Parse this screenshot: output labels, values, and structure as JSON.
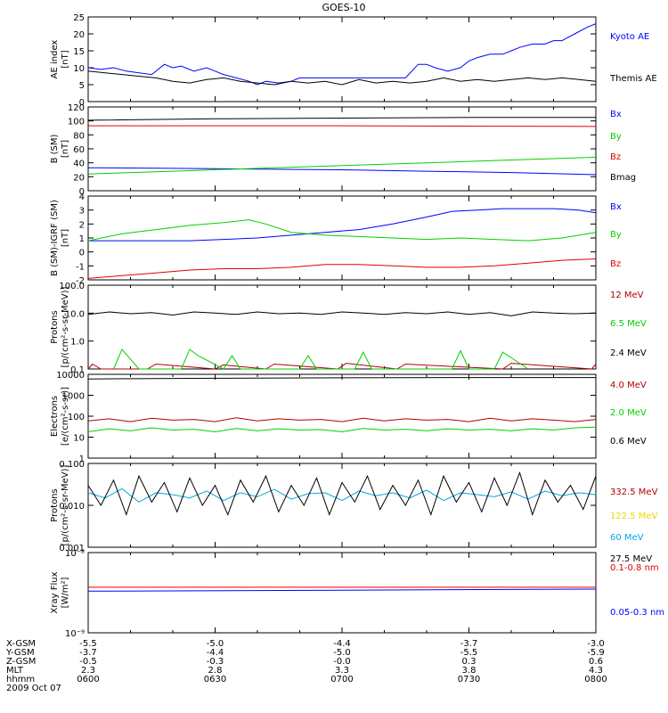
{
  "title": "GOES-10",
  "colors": {
    "black": "#000000",
    "blue": "#0000ff",
    "red": "#e00000",
    "green": "#00d000",
    "yellow": "#e8d800",
    "cyan": "#00a8e0",
    "darkred": "#b00000"
  },
  "chart_data": [
    {
      "type": "line",
      "ylabel": [
        "AE index",
        "[nT]"
      ],
      "ylim": [
        0,
        25
      ],
      "yticks": [
        "0",
        "5",
        "10",
        "15",
        "20",
        "25"
      ],
      "scale": "linear",
      "series": [
        {
          "name": "Kyoto AE",
          "color": "blue",
          "x": [
            0,
            3,
            6,
            9,
            12,
            15,
            18,
            20,
            22,
            25,
            28,
            30,
            32,
            35,
            38,
            40,
            42,
            45,
            48,
            50,
            52,
            55,
            58,
            60,
            62,
            65,
            68,
            70,
            72,
            75,
            78,
            80,
            82,
            85,
            88,
            90,
            92,
            95,
            98,
            100,
            102,
            105,
            108,
            110,
            112,
            115,
            118,
            120
          ],
          "y": [
            10,
            9.5,
            10,
            9,
            8.5,
            8,
            11,
            10,
            10.5,
            9,
            10,
            9,
            8,
            7,
            6,
            5,
            6,
            5.5,
            6,
            7,
            7,
            7,
            7,
            7,
            7,
            7,
            7,
            7,
            7,
            7,
            11,
            11,
            10,
            9,
            10,
            12,
            13,
            14,
            14,
            15,
            16,
            17,
            17,
            18,
            18,
            20,
            22,
            23
          ]
        },
        {
          "name": "Themis AE",
          "color": "black",
          "x": [
            0,
            4,
            8,
            12,
            16,
            20,
            24,
            28,
            32,
            36,
            40,
            44,
            48,
            52,
            56,
            60,
            64,
            68,
            72,
            76,
            80,
            84,
            88,
            92,
            96,
            100,
            104,
            108,
            112,
            116,
            120
          ],
          "y": [
            9,
            8.5,
            8,
            7.5,
            7,
            6,
            5.5,
            6.5,
            7,
            6,
            5.5,
            5,
            6,
            5.5,
            6,
            5,
            6.5,
            5.5,
            6,
            5.5,
            6,
            7,
            6,
            6.5,
            6,
            6.5,
            7,
            6.5,
            7,
            6.5,
            6
          ]
        }
      ]
    },
    {
      "type": "line",
      "ylabel": [
        "B (SM)",
        "[nT]"
      ],
      "ylim": [
        0,
        120
      ],
      "yticks": [
        "0",
        "20",
        "40",
        "60",
        "80",
        "100",
        "120"
      ],
      "scale": "linear",
      "series": [
        {
          "name": "Bx",
          "color": "blue",
          "x": [
            0,
            20,
            40,
            60,
            80,
            100,
            120
          ],
          "y": [
            33,
            32,
            31,
            30,
            28,
            26,
            23
          ]
        },
        {
          "name": "By",
          "color": "green",
          "x": [
            0,
            20,
            40,
            60,
            80,
            100,
            120
          ],
          "y": [
            24,
            28,
            32,
            36,
            40,
            44,
            48
          ]
        },
        {
          "name": "Bz",
          "color": "red",
          "x": [
            0,
            60,
            120
          ],
          "y": [
            93,
            93,
            92
          ]
        },
        {
          "name": "Bmag",
          "color": "black",
          "x": [
            0,
            30,
            60,
            90,
            120
          ],
          "y": [
            101,
            103,
            104,
            105,
            105
          ]
        }
      ]
    },
    {
      "type": "line",
      "ylabel": [
        "B (SM)-IGRF (SM)",
        "[nT]"
      ],
      "ylim": [
        -2,
        4
      ],
      "yticks": [
        "-2",
        "-1",
        "0",
        "1",
        "2",
        "3",
        "4"
      ],
      "scale": "linear",
      "series": [
        {
          "name": "Bx",
          "color": "blue",
          "x": [
            0,
            8,
            16,
            24,
            32,
            40,
            48,
            56,
            64,
            72,
            80,
            86,
            92,
            98,
            104,
            110,
            116,
            120
          ],
          "y": [
            0.8,
            0.8,
            0.8,
            0.8,
            0.9,
            1.0,
            1.2,
            1.4,
            1.6,
            2.0,
            2.5,
            2.9,
            3.0,
            3.1,
            3.1,
            3.1,
            3.0,
            2.8
          ]
        },
        {
          "name": "By",
          "color": "green",
          "x": [
            0,
            8,
            16,
            24,
            32,
            38,
            42,
            48,
            56,
            64,
            72,
            80,
            88,
            96,
            104,
            112,
            120
          ],
          "y": [
            0.8,
            1.3,
            1.6,
            1.9,
            2.1,
            2.3,
            2.0,
            1.4,
            1.2,
            1.1,
            1.0,
            0.9,
            1.0,
            0.9,
            0.8,
            1.0,
            1.4
          ]
        },
        {
          "name": "Bz",
          "color": "red",
          "x": [
            0,
            8,
            16,
            24,
            32,
            40,
            48,
            56,
            64,
            72,
            80,
            88,
            96,
            104,
            112,
            120
          ],
          "y": [
            -1.9,
            -1.7,
            -1.5,
            -1.3,
            -1.2,
            -1.2,
            -1.1,
            -0.9,
            -0.9,
            -1.0,
            -1.1,
            -1.1,
            -1.0,
            -0.8,
            -0.6,
            -0.5
          ]
        }
      ]
    },
    {
      "type": "line",
      "ylabel": [
        "Protons",
        "[p/(cm²-s-sr-MeV)]"
      ],
      "ylim": [
        0.1,
        100
      ],
      "yticks": [
        "0.1",
        "1.0",
        "10.0",
        "100.0"
      ],
      "scale": "log",
      "series": [
        {
          "name": "12 MeV",
          "color": "darkred",
          "x": [
            0,
            1,
            3,
            14,
            16,
            30,
            32,
            42,
            44,
            59,
            61,
            73,
            75,
            98,
            100,
            119,
            120
          ],
          "y": [
            0.1,
            0.15,
            0.1,
            0.1,
            0.15,
            0.1,
            0.14,
            0.1,
            0.15,
            0.1,
            0.16,
            0.1,
            0.15,
            0.1,
            0.16,
            0.1,
            0.15
          ]
        },
        {
          "name": "6.5 MeV",
          "color": "green",
          "x": [
            6,
            8,
            12,
            22,
            24,
            26,
            32,
            34,
            36,
            50,
            52,
            54,
            63,
            65,
            67,
            86,
            88,
            90,
            96,
            98,
            104
          ],
          "y": [
            0.1,
            0.5,
            0.1,
            0.1,
            0.5,
            0.3,
            0.1,
            0.3,
            0.1,
            0.1,
            0.3,
            0.1,
            0.1,
            0.4,
            0.1,
            0.1,
            0.45,
            0.1,
            0.1,
            0.4,
            0.1
          ]
        },
        {
          "name": "2.4 MeV",
          "color": "black",
          "x": [
            0,
            5,
            10,
            15,
            20,
            25,
            30,
            35,
            40,
            45,
            50,
            55,
            60,
            65,
            70,
            75,
            80,
            85,
            90,
            95,
            100,
            105,
            110,
            115,
            120
          ],
          "y": [
            9,
            11,
            9.5,
            10.5,
            8.5,
            11,
            10,
            9,
            11,
            9.5,
            10,
            9,
            11,
            10,
            9,
            10.5,
            9.5,
            11,
            9,
            10.5,
            8,
            11,
            10,
            9.5,
            10
          ]
        }
      ]
    },
    {
      "type": "line",
      "ylabel": [
        "Electrons",
        "[e/(cm²-s-sr)]"
      ],
      "ylim": [
        1,
        10000
      ],
      "yticks": [
        "1",
        "10",
        "100",
        "1000",
        "10000"
      ],
      "scale": "log",
      "series": [
        {
          "name": "4.0 MeV",
          "color": "darkred",
          "x": [
            0,
            5,
            10,
            15,
            20,
            25,
            30,
            35,
            40,
            45,
            50,
            55,
            60,
            65,
            70,
            75,
            80,
            85,
            90,
            95,
            100,
            105,
            110,
            115,
            120
          ],
          "y": [
            60,
            75,
            55,
            80,
            65,
            70,
            55,
            85,
            60,
            75,
            65,
            70,
            55,
            80,
            60,
            75,
            65,
            70,
            55,
            80,
            60,
            75,
            65,
            55,
            70
          ]
        },
        {
          "name": "2.0 MeV",
          "color": "green",
          "x": [
            0,
            5,
            10,
            15,
            20,
            25,
            30,
            35,
            40,
            45,
            50,
            55,
            60,
            65,
            70,
            75,
            80,
            85,
            90,
            95,
            100,
            105,
            110,
            115,
            120
          ],
          "y": [
            18,
            25,
            20,
            28,
            22,
            24,
            18,
            26,
            20,
            25,
            22,
            23,
            18,
            26,
            22,
            24,
            20,
            25,
            22,
            24,
            20,
            25,
            22,
            28,
            30
          ]
        },
        {
          "name": "0.6 MeV",
          "color": "black",
          "x": [
            0,
            30,
            60,
            90,
            120
          ],
          "y": [
            6000,
            6500,
            6800,
            7000,
            7000
          ]
        }
      ]
    },
    {
      "type": "line",
      "ylabel": [
        "Protons",
        "[p/(cm²-s-sr-MeV)]"
      ],
      "ylim": [
        0.001,
        0.1
      ],
      "yticks": [
        "0.001",
        "0.010",
        "0.100"
      ],
      "scale": "log",
      "series": [
        {
          "name": "332.5 MeV",
          "color": "darkred",
          "x": [],
          "y": []
        },
        {
          "name": "122.5 MeV",
          "color": "yellow",
          "x": [],
          "y": []
        },
        {
          "name": "60 MeV",
          "color": "cyan",
          "x": [
            0,
            4,
            8,
            12,
            16,
            20,
            24,
            28,
            32,
            36,
            40,
            44,
            48,
            52,
            56,
            60,
            64,
            68,
            72,
            76,
            80,
            84,
            88,
            92,
            96,
            100,
            104,
            108,
            112,
            116,
            120
          ],
          "y": [
            0.02,
            0.015,
            0.025,
            0.012,
            0.02,
            0.018,
            0.015,
            0.022,
            0.013,
            0.02,
            0.016,
            0.024,
            0.014,
            0.019,
            0.02,
            0.013,
            0.022,
            0.017,
            0.02,
            0.015,
            0.023,
            0.013,
            0.02,
            0.018,
            0.016,
            0.021,
            0.014,
            0.022,
            0.017,
            0.02,
            0.018
          ]
        },
        {
          "name": "27.5 MeV",
          "color": "black",
          "x": [
            0,
            3,
            6,
            9,
            12,
            15,
            18,
            21,
            24,
            27,
            30,
            33,
            36,
            39,
            42,
            45,
            48,
            51,
            54,
            57,
            60,
            63,
            66,
            69,
            72,
            75,
            78,
            81,
            84,
            87,
            90,
            93,
            96,
            99,
            102,
            105,
            108,
            111,
            114,
            117,
            120
          ],
          "y": [
            0.03,
            0.01,
            0.04,
            0.006,
            0.05,
            0.012,
            0.035,
            0.007,
            0.045,
            0.01,
            0.03,
            0.006,
            0.04,
            0.012,
            0.05,
            0.007,
            0.03,
            0.01,
            0.045,
            0.006,
            0.035,
            0.012,
            0.05,
            0.008,
            0.03,
            0.01,
            0.04,
            0.006,
            0.05,
            0.012,
            0.035,
            0.007,
            0.045,
            0.01,
            0.06,
            0.006,
            0.04,
            0.012,
            0.03,
            0.008,
            0.05
          ]
        }
      ]
    },
    {
      "type": "line",
      "ylabel": [
        "Xray Flux",
        "[W/m²]"
      ],
      "ylim": [
        1e-09,
        1e-08
      ],
      "yticks": [
        "10⁻⁹",
        "10⁻⁸"
      ],
      "scale": "log",
      "series": [
        {
          "name": "0.1-0.8 nm",
          "color": "red",
          "x": [
            0,
            120
          ],
          "y": [
            3.7e-09,
            3.7e-09
          ]
        },
        {
          "name": "0.05-0.3 nm",
          "color": "blue",
          "x": [
            0,
            60,
            120
          ],
          "y": [
            3.3e-09,
            3.4e-09,
            3.5e-09
          ]
        }
      ]
    }
  ],
  "orbit": {
    "row_labels": [
      "X-GSM",
      "Y-GSM",
      "Z-GSM",
      "MLT",
      "hhmm"
    ],
    "columns": [
      [
        "-5.5",
        "-3.7",
        "-0.5",
        "2.3",
        "0600"
      ],
      [
        "-5.0",
        "-4.4",
        "-0.3",
        "2.8",
        "0630"
      ],
      [
        "-4.4",
        "-5.0",
        "-0.0",
        "3.3",
        "0700"
      ],
      [
        "-3.7",
        "-5.5",
        "0.3",
        "3.8",
        "0730"
      ],
      [
        "-3.0",
        "-5.9",
        "0.6",
        "4.3",
        "0800"
      ]
    ],
    "date": "2009 Oct 07"
  }
}
